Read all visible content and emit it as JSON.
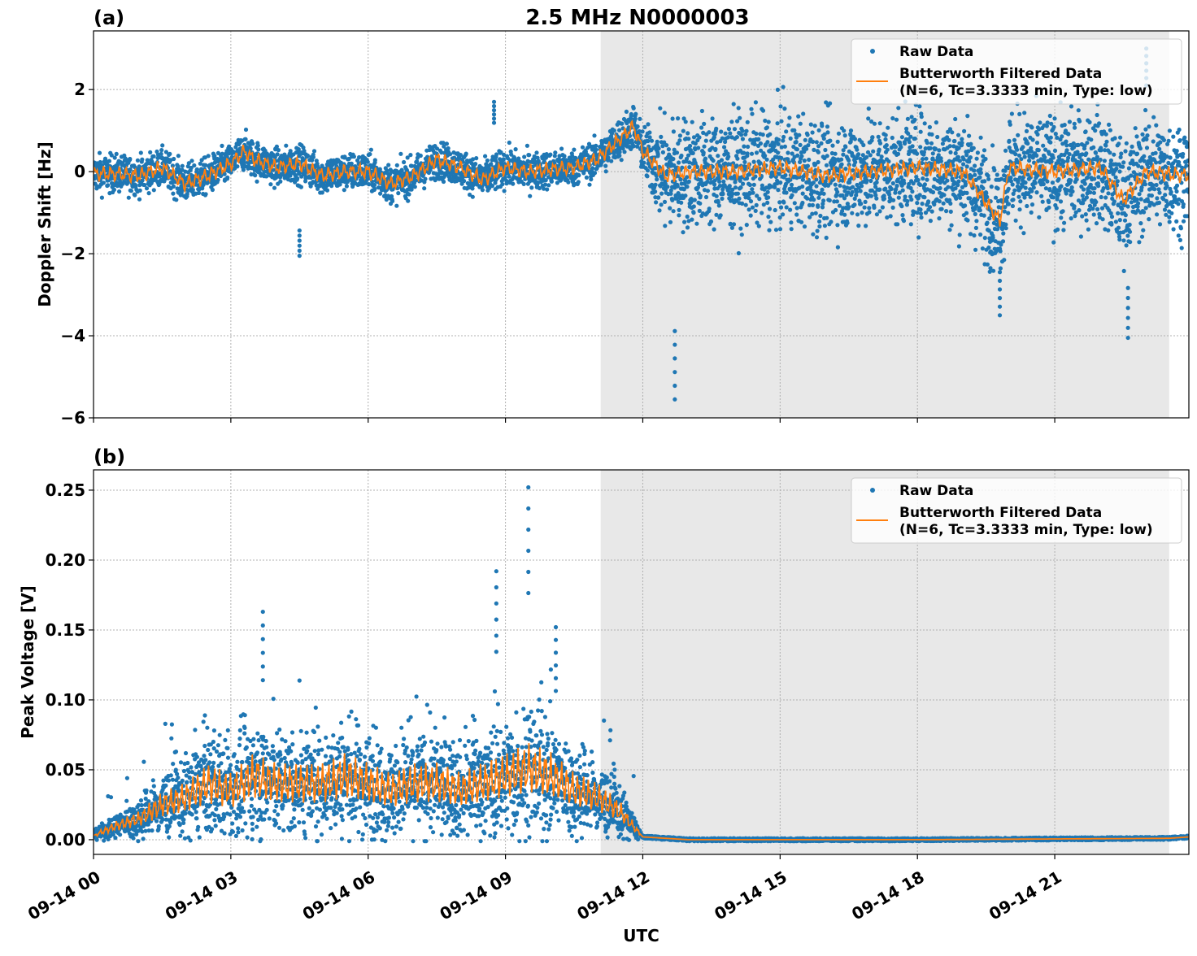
{
  "figure_title": "2.5 MHz N0000003",
  "colors": {
    "raw": "#1f77b4",
    "filtered": "#ff7f0e",
    "shade": "#e8e8e8",
    "grid": "#b0b0b0"
  },
  "chart_data": [
    {
      "panel_label": "(a)",
      "type": "scatter+line",
      "ylabel": "Doppler Shift [Hz]",
      "xlabel": "",
      "xlim_hours_utc": [
        0,
        23.93
      ],
      "ylim": [
        -6,
        3.43
      ],
      "yticks": [
        -6,
        -4,
        -2,
        0,
        2
      ],
      "ytick_labels": [
        "−6",
        "−4",
        "−2",
        "0",
        "2"
      ],
      "grid": true,
      "legend_placement": "top-right",
      "legend": [
        "Raw Data",
        "Butterworth Filtered Data",
        "(N=6, Tc=3.3333 min, Type: low)"
      ],
      "shaded_span_hours_utc": [
        11.08,
        23.5
      ],
      "filtered_x_hours": [
        0,
        0.5,
        1,
        1.5,
        2,
        2.5,
        3,
        3.3,
        3.5,
        4,
        4.5,
        5,
        5.5,
        6,
        6.5,
        7,
        7.5,
        8,
        8.5,
        9,
        9.5,
        10,
        10.5,
        11,
        11.5,
        11.8,
        12,
        12.5,
        13,
        14,
        15,
        16,
        17,
        18,
        19,
        19.8,
        20,
        21,
        22,
        22.5,
        23,
        23.93
      ],
      "filtered_y": [
        -0.05,
        -0.05,
        -0.1,
        0.1,
        -0.3,
        -0.1,
        0.2,
        0.5,
        0.3,
        0.1,
        0.2,
        -0.1,
        0.0,
        0.0,
        -0.3,
        -0.1,
        0.3,
        0.1,
        -0.2,
        0.1,
        0.0,
        0.05,
        0.1,
        0.3,
        0.8,
        1.1,
        0.5,
        -0.1,
        0.0,
        0.0,
        0.1,
        -0.1,
        0.0,
        0.1,
        0.0,
        -1.2,
        0.1,
        0.0,
        0.1,
        -0.7,
        0.0,
        -0.1
      ],
      "raw_spread_x_hours": [
        0,
        11,
        12,
        12.5,
        24
      ],
      "raw_spread": [
        0.4,
        0.4,
        0.5,
        1.2,
        1.2
      ],
      "raw_extremes": [
        [
          4.5,
          -2.05
        ],
        [
          8.75,
          1.7
        ],
        [
          12.7,
          -5.55
        ],
        [
          19.8,
          -3.5
        ],
        [
          22.6,
          -4.05
        ],
        [
          23.0,
          3.0
        ]
      ]
    },
    {
      "panel_label": "(b)",
      "type": "scatter+line",
      "ylabel": "Peak Voltage [V]",
      "xlabel": "UTC",
      "xlim_hours_utc": [
        0,
        23.93
      ],
      "ylim": [
        -0.0105,
        0.2645
      ],
      "yticks": [
        0,
        0.05,
        0.1,
        0.15,
        0.2,
        0.25
      ],
      "ytick_labels": [
        "0.00",
        "0.05",
        "0.10",
        "0.15",
        "0.20",
        "0.25"
      ],
      "xticks_hours": [
        0,
        3,
        6,
        9,
        12,
        15,
        18,
        21
      ],
      "xtick_labels": [
        "09-14 00",
        "09-14 03",
        "09-14 06",
        "09-14 09",
        "09-14 12",
        "09-14 15",
        "09-14 18",
        "09-14 21"
      ],
      "grid": true,
      "legend_placement": "top-right",
      "legend": [
        "Raw Data",
        "Butterworth Filtered Data",
        "(N=6, Tc=3.3333 min, Type: low)"
      ],
      "shaded_span_hours_utc": [
        11.08,
        23.5
      ],
      "filtered_x_hours": [
        0,
        0.5,
        1,
        1.5,
        2,
        2.5,
        3,
        3.5,
        4,
        4.5,
        5,
        5.5,
        6,
        6.5,
        7,
        7.5,
        8,
        8.5,
        9,
        9.5,
        10,
        10.5,
        11,
        11.5,
        12,
        13,
        18,
        23.5,
        23.93
      ],
      "filtered_y": [
        0.003,
        0.01,
        0.015,
        0.025,
        0.03,
        0.04,
        0.035,
        0.045,
        0.04,
        0.04,
        0.04,
        0.045,
        0.04,
        0.035,
        0.04,
        0.04,
        0.035,
        0.04,
        0.045,
        0.05,
        0.045,
        0.035,
        0.03,
        0.02,
        0.002,
        0.0,
        0.0,
        0.001,
        0.002
      ],
      "raw_extremes": [
        [
          3.7,
          0.163
        ],
        [
          8.8,
          0.192
        ],
        [
          9.5,
          0.252
        ],
        [
          10.1,
          0.152
        ]
      ]
    }
  ]
}
